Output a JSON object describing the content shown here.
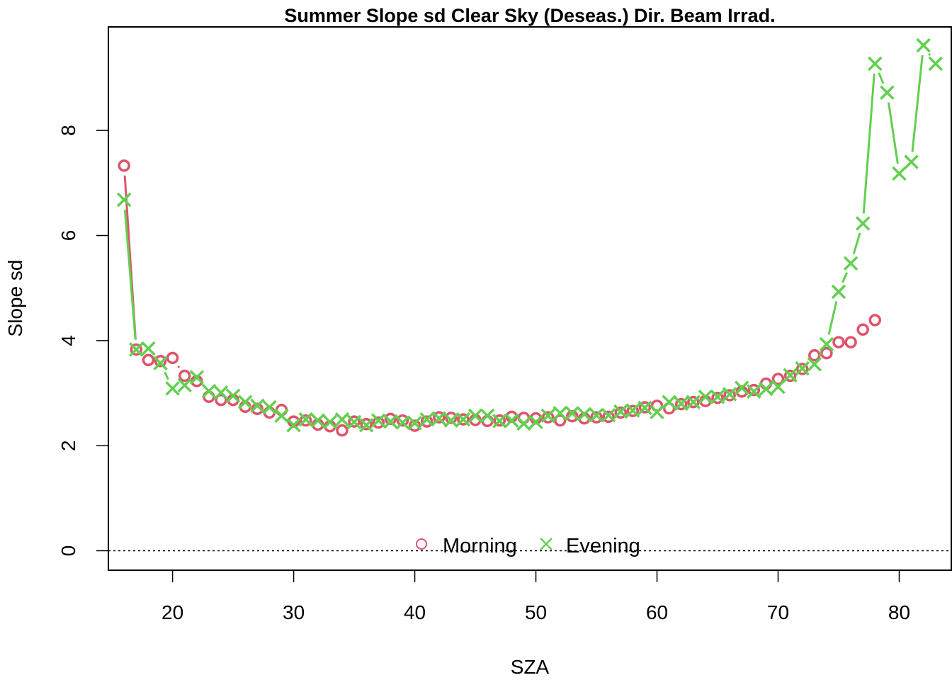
{
  "chart_data": {
    "type": "line",
    "title": "Summer Slope sd Clear Sky (Deseas.) Dir. Beam Irrad.",
    "xlabel": "SZA",
    "ylabel": "Slope sd",
    "xlim": [
      14.7,
      84.3
    ],
    "ylim": [
      -0.37,
      9.97
    ],
    "xticks": [
      20,
      30,
      40,
      50,
      60,
      70,
      80
    ],
    "yticks": [
      0,
      2,
      4,
      6,
      8
    ],
    "grid": false,
    "reference_line": {
      "y": 0,
      "style": "dotted",
      "color": "#000000"
    },
    "legend": {
      "placement": "bottom-center",
      "entries": [
        "Morning",
        "Evening"
      ]
    },
    "series": [
      {
        "name": "Morning",
        "marker": "circle",
        "color": "#DF536B",
        "x": [
          16,
          17,
          18,
          19,
          20,
          21,
          22,
          23,
          24,
          25,
          26,
          27,
          28,
          29,
          30,
          31,
          32,
          33,
          34,
          35,
          36,
          37,
          38,
          39,
          40,
          41,
          42,
          43,
          44,
          45,
          46,
          47,
          48,
          49,
          50,
          51,
          52,
          53,
          54,
          55,
          56,
          57,
          58,
          59,
          60,
          61,
          62,
          63,
          64,
          65,
          66,
          67,
          68,
          69,
          70,
          71,
          72,
          73,
          74,
          75,
          76,
          77,
          78
        ],
        "y": [
          7.33,
          3.83,
          3.63,
          3.61,
          3.67,
          3.33,
          3.23,
          2.93,
          2.87,
          2.87,
          2.74,
          2.7,
          2.63,
          2.68,
          2.46,
          2.48,
          2.4,
          2.37,
          2.29,
          2.46,
          2.41,
          2.44,
          2.51,
          2.48,
          2.38,
          2.46,
          2.54,
          2.53,
          2.5,
          2.49,
          2.47,
          2.48,
          2.55,
          2.53,
          2.52,
          2.54,
          2.48,
          2.56,
          2.52,
          2.54,
          2.55,
          2.63,
          2.66,
          2.73,
          2.76,
          2.71,
          2.79,
          2.83,
          2.85,
          2.91,
          2.96,
          3.03,
          3.06,
          3.18,
          3.27,
          3.33,
          3.46,
          3.72,
          3.76,
          3.97,
          3.97,
          4.21,
          4.39
        ]
      },
      {
        "name": "Evening",
        "marker": "cross",
        "color": "#61D04F",
        "x": [
          16,
          17,
          18,
          19,
          20,
          21,
          22,
          23,
          24,
          25,
          26,
          27,
          28,
          29,
          30,
          31,
          32,
          33,
          34,
          35,
          36,
          37,
          38,
          39,
          40,
          41,
          42,
          43,
          44,
          45,
          46,
          47,
          48,
          49,
          50,
          51,
          52,
          53,
          54,
          55,
          56,
          57,
          58,
          59,
          60,
          61,
          62,
          63,
          64,
          65,
          66,
          67,
          68,
          69,
          70,
          71,
          72,
          73,
          74,
          75,
          76,
          77,
          78,
          79,
          80,
          81,
          82,
          83
        ],
        "y": [
          6.68,
          3.83,
          3.85,
          3.57,
          3.09,
          3.15,
          3.3,
          3.04,
          3.01,
          2.95,
          2.83,
          2.76,
          2.73,
          2.57,
          2.39,
          2.5,
          2.48,
          2.45,
          2.5,
          2.45,
          2.39,
          2.48,
          2.46,
          2.44,
          2.43,
          2.5,
          2.52,
          2.48,
          2.5,
          2.57,
          2.57,
          2.47,
          2.48,
          2.42,
          2.45,
          2.57,
          2.62,
          2.62,
          2.6,
          2.58,
          2.58,
          2.65,
          2.67,
          2.72,
          2.64,
          2.83,
          2.8,
          2.83,
          2.93,
          2.93,
          2.98,
          3.1,
          3.03,
          3.08,
          3.12,
          3.34,
          3.47,
          3.55,
          3.93,
          4.93,
          5.47,
          6.23,
          9.27,
          8.72,
          7.18,
          7.4,
          9.62,
          9.27
        ]
      }
    ]
  }
}
